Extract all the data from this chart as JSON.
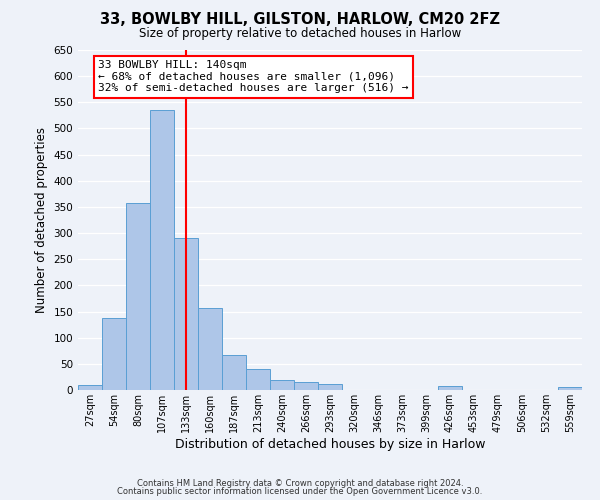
{
  "title": "33, BOWLBY HILL, GILSTON, HARLOW, CM20 2FZ",
  "subtitle": "Size of property relative to detached houses in Harlow",
  "xlabel": "Distribution of detached houses by size in Harlow",
  "ylabel": "Number of detached properties",
  "footer_line1": "Contains HM Land Registry data © Crown copyright and database right 2024.",
  "footer_line2": "Contains public sector information licensed under the Open Government Licence v3.0.",
  "bin_labels": [
    "27sqm",
    "54sqm",
    "80sqm",
    "107sqm",
    "133sqm",
    "160sqm",
    "187sqm",
    "213sqm",
    "240sqm",
    "266sqm",
    "293sqm",
    "320sqm",
    "346sqm",
    "373sqm",
    "399sqm",
    "426sqm",
    "453sqm",
    "479sqm",
    "506sqm",
    "532sqm",
    "559sqm"
  ],
  "bin_edges": [
    0,
    1,
    2,
    3,
    4,
    5,
    6,
    7,
    8,
    9,
    10,
    11,
    12,
    13,
    14,
    15,
    16,
    17,
    18,
    19,
    20
  ],
  "bar_heights": [
    10,
    138,
    358,
    535,
    290,
    157,
    67,
    40,
    20,
    15,
    12,
    0,
    0,
    0,
    0,
    8,
    0,
    0,
    0,
    0,
    5
  ],
  "bar_color": "#aec6e8",
  "bar_edge_color": "#5a9fd4",
  "vline_x": 4.5,
  "vline_color": "red",
  "ylim": [
    0,
    650
  ],
  "yticks": [
    0,
    50,
    100,
    150,
    200,
    250,
    300,
    350,
    400,
    450,
    500,
    550,
    600,
    650
  ],
  "annotation_title": "33 BOWLBY HILL: 140sqm",
  "annotation_line1": "← 68% of detached houses are smaller (1,096)",
  "annotation_line2": "32% of semi-detached houses are larger (516) →",
  "annotation_box_color": "white",
  "annotation_box_edge_color": "red",
  "background_color": "#eef2f9"
}
